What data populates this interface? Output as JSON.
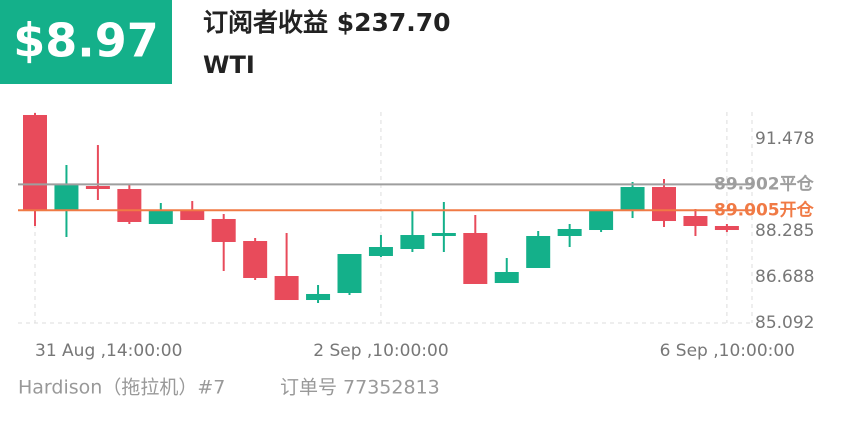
{
  "header": {
    "profit": "$8.97",
    "title": "订阅者收益 $237.70",
    "symbol": "WTI"
  },
  "chart_data": {
    "type": "candlestick",
    "categories": [
      "31 Aug ,14:00:00",
      null,
      null,
      null,
      null,
      null,
      null,
      null,
      null,
      null,
      null,
      "2 Sep ,10:00:00",
      null,
      null,
      null,
      null,
      null,
      null,
      null,
      null,
      null,
      null,
      "6 Sep ,10:00:00"
    ],
    "open": [
      92.312,
      89.014,
      89.847,
      89.743,
      88.528,
      89.014,
      88.702,
      87.938,
      86.723,
      85.89,
      86.133,
      87.418,
      87.661,
      88.112,
      88.216,
      86.48,
      87.001,
      88.112,
      88.32,
      88.979,
      89.812,
      88.806,
      88.459
    ],
    "high": [
      92.381,
      90.576,
      91.27,
      89.882,
      89.257,
      89.326,
      88.875,
      88.042,
      88.216,
      86.411,
      87.487,
      88.146,
      88.979,
      89.292,
      88.84,
      87.348,
      88.285,
      88.528,
      88.979,
      89.986,
      90.09,
      89.049,
      88.528
    ],
    "low": [
      88.459,
      88.077,
      89.361,
      88.528,
      88.528,
      88.667,
      86.897,
      86.585,
      85.89,
      85.786,
      86.064,
      87.383,
      87.556,
      87.556,
      86.446,
      86.48,
      87.001,
      87.73,
      88.25,
      88.736,
      88.424,
      88.112,
      88.25
    ],
    "close": [
      88.979,
      89.882,
      89.743,
      88.598,
      88.979,
      88.667,
      87.904,
      86.654,
      85.89,
      86.099,
      87.487,
      87.73,
      88.146,
      88.216,
      86.446,
      86.862,
      88.112,
      88.355,
      88.979,
      89.812,
      88.632,
      88.459,
      88.32
    ],
    "up_color": "#14b08a",
    "down_color": "#e84b5b",
    "ylim": [
      85.092,
      92.416
    ],
    "yticks": [
      85.092,
      86.688,
      88.285,
      91.478
    ],
    "reference_lines": [
      {
        "value": 89.902,
        "label": "平仓",
        "color": "#9e9e9e"
      },
      {
        "value": 89.005,
        "label": "开仓",
        "color": "#f07a45"
      }
    ]
  },
  "footer": {
    "trader": "Hardison（拖拉机）#7",
    "order": "订单号 77352813"
  }
}
